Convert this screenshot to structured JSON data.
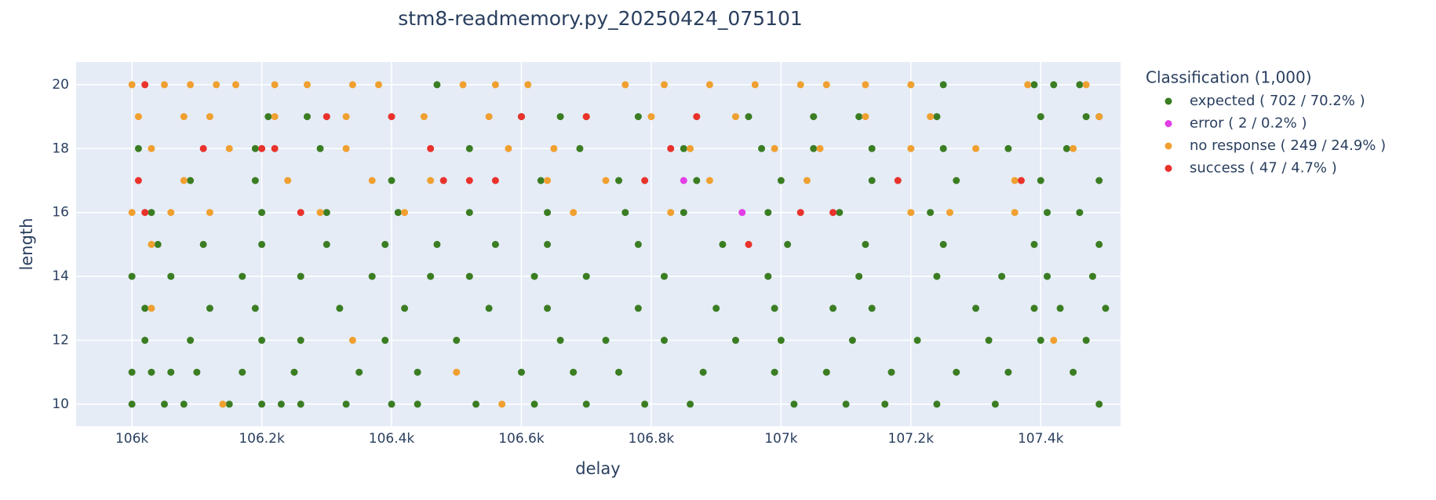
{
  "chart_data": {
    "type": "scatter",
    "title": "stm8-readmemory.py_20250424_075101",
    "x_label": "delay",
    "y_label": "length",
    "legend_title": "Classification (1,000)",
    "legend_position": "right",
    "grid": true,
    "xlim": [
      105914,
      107523
    ],
    "xticks": [
      {
        "value": 106000,
        "label": "106k"
      },
      {
        "value": 106200,
        "label": "106.2k"
      },
      {
        "value": 106400,
        "label": "106.4k"
      },
      {
        "value": 106600,
        "label": "106.6k"
      },
      {
        "value": 106800,
        "label": "106.8k"
      },
      {
        "value": 107000,
        "label": "107k"
      },
      {
        "value": 107200,
        "label": "107.2k"
      },
      {
        "value": 107400,
        "label": "107.4k"
      }
    ],
    "ylim": [
      9.31,
      20.71
    ],
    "yticks": [
      10,
      12,
      14,
      16,
      18,
      20
    ],
    "series": [
      {
        "name": "expected ( 702 / 70.2% )",
        "color": "#3a7d22",
        "x": [
          106000,
          106050,
          106080,
          106150,
          106200,
          106230,
          106260,
          106330,
          106400,
          106440,
          106530,
          106620,
          106700,
          106790,
          106860,
          107020,
          107100,
          107160,
          107240,
          107330,
          107490,
          106000,
          106030,
          106060,
          106100,
          106170,
          106250,
          106350,
          106440,
          106600,
          106680,
          106750,
          106880,
          106990,
          107070,
          107170,
          107270,
          107350,
          107450,
          106020,
          106090,
          106200,
          106260,
          106390,
          106500,
          106660,
          106730,
          106820,
          106930,
          107000,
          107110,
          107210,
          107320,
          107400,
          107470,
          106020,
          106120,
          106190,
          106320,
          106420,
          106550,
          106640,
          106780,
          106900,
          106990,
          107080,
          107140,
          107300,
          107390,
          107430,
          107500,
          106000,
          106060,
          106170,
          106260,
          106370,
          106460,
          106520,
          106620,
          106700,
          106820,
          106980,
          107120,
          107240,
          107340,
          107410,
          107480,
          106040,
          106110,
          106200,
          106300,
          106390,
          106470,
          106560,
          106640,
          106780,
          106910,
          107010,
          107130,
          107250,
          107390,
          107490,
          106030,
          106200,
          106300,
          106410,
          106520,
          106640,
          106760,
          106850,
          106980,
          107090,
          107230,
          107410,
          107460,
          106090,
          106190,
          106400,
          106630,
          106750,
          106870,
          107000,
          107140,
          107270,
          107400,
          107490,
          106010,
          106190,
          106290,
          106520,
          106690,
          106850,
          106970,
          107050,
          107140,
          107250,
          107350,
          107440,
          106210,
          106270,
          106600,
          106660,
          106780,
          106950,
          107050,
          107120,
          107240,
          107400,
          107470,
          107490,
          106470,
          107250,
          107390,
          107420,
          107460
        ],
        "values": [
          10,
          10,
          10,
          10,
          10,
          10,
          10,
          10,
          10,
          10,
          10,
          10,
          10,
          10,
          10,
          10,
          10,
          10,
          10,
          10,
          10,
          11,
          11,
          11,
          11,
          11,
          11,
          11,
          11,
          11,
          11,
          11,
          11,
          11,
          11,
          11,
          11,
          11,
          11,
          12,
          12,
          12,
          12,
          12,
          12,
          12,
          12,
          12,
          12,
          12,
          12,
          12,
          12,
          12,
          12,
          13,
          13,
          13,
          13,
          13,
          13,
          13,
          13,
          13,
          13,
          13,
          13,
          13,
          13,
          13,
          13,
          14,
          14,
          14,
          14,
          14,
          14,
          14,
          14,
          14,
          14,
          14,
          14,
          14,
          14,
          14,
          14,
          15,
          15,
          15,
          15,
          15,
          15,
          15,
          15,
          15,
          15,
          15,
          15,
          15,
          15,
          15,
          16,
          16,
          16,
          16,
          16,
          16,
          16,
          16,
          16,
          16,
          16,
          16,
          16,
          17,
          17,
          17,
          17,
          17,
          17,
          17,
          17,
          17,
          17,
          17,
          18,
          18,
          18,
          18,
          18,
          18,
          18,
          18,
          18,
          18,
          18,
          18,
          19,
          19,
          19,
          19,
          19,
          19,
          19,
          19,
          19,
          19,
          19,
          19,
          20,
          20,
          20,
          20,
          20
        ]
      },
      {
        "name": "error ( 2 / 0.2% )",
        "color": "#e23ee6",
        "x": [
          106850,
          106940
        ],
        "values": [
          17,
          16
        ]
      },
      {
        "name": "no response ( 249 / 24.9% )",
        "color": "#f0a030",
        "x": [
          106030,
          106030,
          106340,
          106500,
          106140,
          106570,
          107420,
          106000,
          106050,
          106090,
          106130,
          106160,
          106220,
          106270,
          106340,
          106380,
          106510,
          106560,
          106610,
          106760,
          106820,
          106890,
          106960,
          107030,
          107070,
          107130,
          107200,
          107380,
          107470,
          106010,
          106080,
          106120,
          106220,
          106330,
          106450,
          106550,
          106700,
          106800,
          106930,
          107130,
          107230,
          107490,
          106030,
          106150,
          106330,
          106580,
          106650,
          106860,
          106990,
          107060,
          107200,
          107300,
          107450,
          106080,
          106240,
          106370,
          106460,
          106640,
          106730,
          106890,
          107040,
          107360,
          106000,
          106060,
          106120,
          106290,
          106420,
          106680,
          106830,
          107200,
          107260,
          107360,
          106950
        ],
        "values": [
          15,
          13,
          12,
          11,
          10,
          10,
          12,
          20,
          20,
          20,
          20,
          20,
          20,
          20,
          20,
          20,
          20,
          20,
          20,
          20,
          20,
          20,
          20,
          20,
          20,
          20,
          20,
          20,
          20,
          19,
          19,
          19,
          19,
          19,
          19,
          19,
          19,
          19,
          19,
          19,
          19,
          19,
          18,
          18,
          18,
          18,
          18,
          18,
          18,
          18,
          18,
          18,
          18,
          17,
          17,
          17,
          17,
          17,
          17,
          17,
          17,
          17,
          16,
          16,
          16,
          16,
          16,
          16,
          16,
          16,
          16,
          16,
          15
        ]
      },
      {
        "name": "success ( 47 / 4.7% )",
        "color": "#e8322b",
        "x": [
          106020,
          106010,
          106020,
          106110,
          106200,
          106260,
          106300,
          106400,
          106460,
          106480,
          106560,
          106600,
          106790,
          106830,
          106870,
          106950,
          107030,
          107080,
          107180,
          107370,
          106520,
          106220,
          106700
        ],
        "values": [
          20,
          17,
          16,
          18,
          18,
          16,
          19,
          19,
          18,
          17,
          17,
          19,
          17,
          18,
          19,
          15,
          16,
          16,
          17,
          17,
          17,
          18,
          19
        ]
      }
    ]
  }
}
